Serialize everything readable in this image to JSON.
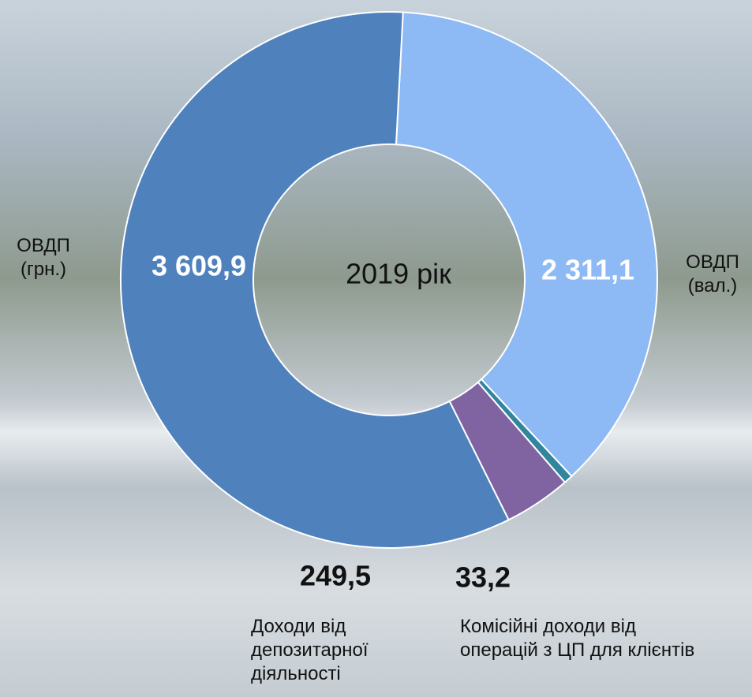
{
  "chart_data": {
    "type": "donut",
    "center_label": "2019 рік",
    "categories": [
      "ОВДП (вал.)",
      "Комісійні доходи від операцій з ЦП для клієнтів",
      "Доходи від депозитарної діяльності",
      "ОВДП (грн.)"
    ],
    "values": [
      2311.1,
      33.2,
      249.5,
      3609.9
    ],
    "value_labels": [
      "2 311,1",
      "33,2",
      "249,5",
      "3 609,9"
    ],
    "colors": [
      "#8db9f5",
      "#31859c",
      "#8064a2",
      "#4f81bd"
    ]
  }
}
